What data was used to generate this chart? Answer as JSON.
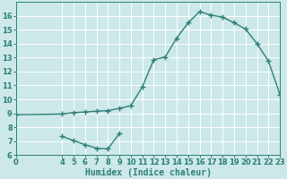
{
  "xlabel": "Humidex (Indice chaleur)",
  "bg_color": "#cce8e8",
  "line_color": "#2e7f7a",
  "grid_color": "#ffffff",
  "xlim": [
    0,
    23
  ],
  "ylim": [
    6,
    17
  ],
  "xticks": [
    0,
    4,
    5,
    6,
    7,
    8,
    9,
    10,
    11,
    12,
    13,
    14,
    15,
    16,
    17,
    18,
    19,
    20,
    21,
    22,
    23
  ],
  "yticks": [
    6,
    7,
    8,
    9,
    10,
    11,
    12,
    13,
    14,
    15,
    16
  ],
  "upper_curve_x": [
    0,
    4,
    5,
    6,
    7,
    8,
    9,
    10,
    11,
    12,
    13,
    14,
    15,
    16,
    17,
    18,
    19,
    20,
    21,
    22,
    23
  ],
  "upper_curve_y": [
    8.9,
    8.95,
    9.05,
    9.1,
    9.15,
    9.2,
    9.35,
    9.55,
    10.9,
    12.85,
    13.05,
    14.4,
    15.5,
    16.3,
    16.05,
    15.9,
    15.5,
    15.05,
    14.0,
    12.75,
    10.35
  ],
  "lower_curve_x": [
    4,
    5,
    6,
    7,
    8,
    9
  ],
  "lower_curve_y": [
    7.35,
    7.05,
    6.75,
    6.5,
    6.45,
    7.55
  ],
  "marker": "+",
  "markersize": 4,
  "markeredgewidth": 1.0,
  "linewidth": 1.0,
  "fontsize_tick": 6,
  "fontsize_label": 7
}
